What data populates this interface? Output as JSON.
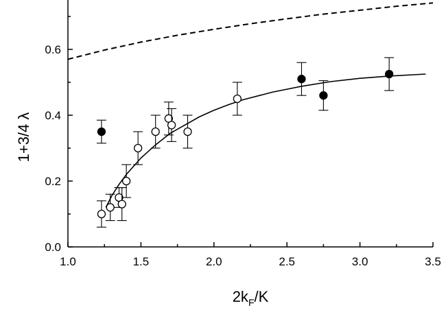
{
  "chart_data": {
    "type": "scatter",
    "title": "",
    "xlabel": "2k_F/K",
    "xlabel_main": "2k",
    "xlabel_sub": "F",
    "xlabel_rest": "/K",
    "ylabel": "1+3/4 λ",
    "xlim": [
      1.0,
      3.5
    ],
    "ylim": [
      0.0,
      0.75
    ],
    "x_ticks": [
      1.0,
      1.5,
      2.0,
      2.5,
      3.0,
      3.5
    ],
    "x_tick_labels": [
      "1.0",
      "1.5",
      "2.0",
      "2.5",
      "3.0",
      "3.5"
    ],
    "y_ticks": [
      0.0,
      0.2,
      0.4,
      0.6
    ],
    "y_tick_labels": [
      "0.0",
      "0.2",
      "0.4",
      "0.6"
    ],
    "grid": false,
    "legend": "none",
    "series": [
      {
        "marker": "open-circle",
        "points": [
          {
            "x": 1.23,
            "y": 0.1,
            "err": 0.04
          },
          {
            "x": 1.29,
            "y": 0.12,
            "err": 0.04
          },
          {
            "x": 1.35,
            "y": 0.15,
            "err": 0.03
          },
          {
            "x": 1.37,
            "y": 0.13,
            "err": 0.05
          },
          {
            "x": 1.4,
            "y": 0.2,
            "err": 0.05
          },
          {
            "x": 1.48,
            "y": 0.3,
            "err": 0.05
          },
          {
            "x": 1.6,
            "y": 0.35,
            "err": 0.05
          },
          {
            "x": 1.69,
            "y": 0.39,
            "err": 0.05
          },
          {
            "x": 1.71,
            "y": 0.37,
            "err": 0.05
          },
          {
            "x": 1.82,
            "y": 0.35,
            "err": 0.05
          },
          {
            "x": 2.16,
            "y": 0.45,
            "err": 0.05
          }
        ]
      },
      {
        "marker": "filled-circle",
        "points": [
          {
            "x": 1.23,
            "y": 0.35,
            "err": 0.035
          },
          {
            "x": 2.6,
            "y": 0.51,
            "err": 0.05
          },
          {
            "x": 2.75,
            "y": 0.46,
            "err": 0.045
          },
          {
            "x": 3.2,
            "y": 0.525,
            "err": 0.05
          }
        ]
      }
    ],
    "fit_curve": {
      "style": "solid",
      "x": [
        1.26,
        1.3,
        1.35,
        1.4,
        1.45,
        1.5,
        1.6,
        1.7,
        1.8,
        1.9,
        2.0,
        2.1,
        2.2,
        2.4,
        2.6,
        2.8,
        3.0,
        3.2,
        3.45
      ],
      "y": [
        0.12,
        0.155,
        0.19,
        0.22,
        0.245,
        0.27,
        0.31,
        0.345,
        0.37,
        0.395,
        0.415,
        0.432,
        0.447,
        0.47,
        0.488,
        0.502,
        0.512,
        0.519,
        0.525
      ]
    },
    "theory_curve": {
      "style": "dashed",
      "x": [
        1.0,
        1.25,
        1.5,
        1.75,
        2.0,
        2.25,
        2.5,
        2.75,
        3.0,
        3.25,
        3.5
      ],
      "y": [
        0.57,
        0.598,
        0.622,
        0.643,
        0.661,
        0.678,
        0.693,
        0.707,
        0.719,
        0.731,
        0.741
      ]
    }
  }
}
